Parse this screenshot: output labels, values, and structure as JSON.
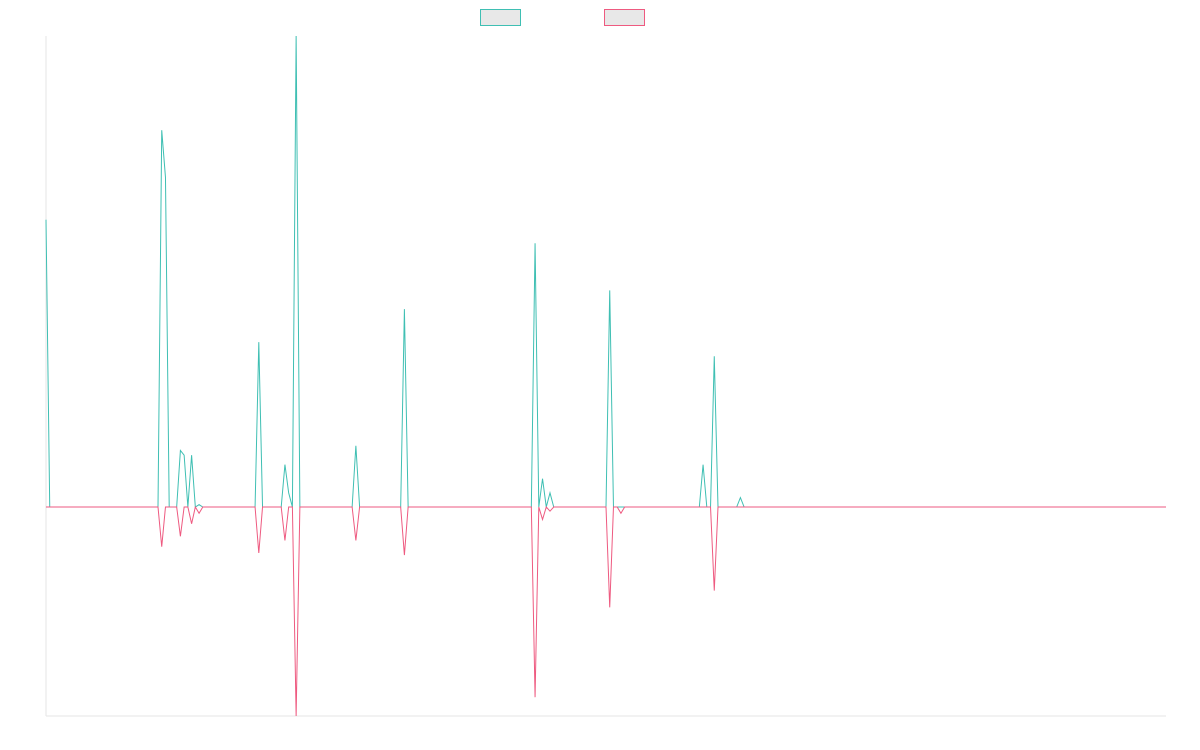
{
  "chart_data": {
    "type": "line",
    "title": "",
    "xlabel": "",
    "ylabel": "",
    "legend_position": "top-center",
    "grid": false,
    "x_count": 301,
    "ylim": [
      -100,
      100
    ],
    "series": [
      {
        "name": "",
        "color": "#3fbfb3",
        "direction": "up",
        "peaks": [
          {
            "x": 0,
            "v": 61
          },
          {
            "x": 1,
            "v": 0
          },
          {
            "x": 31,
            "v": 80
          },
          {
            "x": 32,
            "v": 70
          },
          {
            "x": 36,
            "v": 12
          },
          {
            "x": 37,
            "v": 11
          },
          {
            "x": 39,
            "v": 11
          },
          {
            "x": 41,
            "v": 0.5
          },
          {
            "x": 57,
            "v": 35
          },
          {
            "x": 64,
            "v": 9
          },
          {
            "x": 65,
            "v": 3
          },
          {
            "x": 67,
            "v": 100
          },
          {
            "x": 83,
            "v": 13
          },
          {
            "x": 96,
            "v": 42
          },
          {
            "x": 131,
            "v": 56
          },
          {
            "x": 133,
            "v": 6
          },
          {
            "x": 135,
            "v": 3
          },
          {
            "x": 151,
            "v": 46
          },
          {
            "x": 176,
            "v": 9
          },
          {
            "x": 179,
            "v": 32
          },
          {
            "x": 186,
            "v": 2
          }
        ]
      },
      {
        "name": "",
        "color": "#ee5a80",
        "direction": "down",
        "peaks": [
          {
            "x": 31,
            "v": 19
          },
          {
            "x": 36,
            "v": 14
          },
          {
            "x": 39,
            "v": 8
          },
          {
            "x": 41,
            "v": 3
          },
          {
            "x": 57,
            "v": 22
          },
          {
            "x": 64,
            "v": 16
          },
          {
            "x": 67,
            "v": 100
          },
          {
            "x": 83,
            "v": 16
          },
          {
            "x": 96,
            "v": 23
          },
          {
            "x": 131,
            "v": 91
          },
          {
            "x": 133,
            "v": 6
          },
          {
            "x": 135,
            "v": 2
          },
          {
            "x": 151,
            "v": 48
          },
          {
            "x": 154,
            "v": 3
          },
          {
            "x": 179,
            "v": 40
          }
        ]
      }
    ]
  }
}
